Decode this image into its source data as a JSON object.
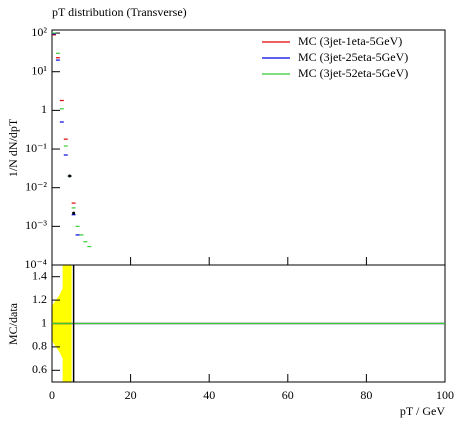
{
  "chart_data": {
    "type": "histogram-ratio",
    "title": "pT distribution (Transverse)",
    "ylabel": "1/N dN/dpT",
    "xlabel": "pT / GeV",
    "ratio_ylabel": "MC/data",
    "log_y": true,
    "xlim": [
      0,
      100
    ],
    "xticks": [
      0,
      20,
      40,
      60,
      80,
      100
    ],
    "ylim": [
      0.0001,
      120
    ],
    "yticks": [
      {
        "value": 100,
        "label": "10²"
      },
      {
        "value": 10,
        "label": "10¹"
      },
      {
        "value": 1,
        "label": "1"
      },
      {
        "value": 0.1,
        "label": "10⁻¹"
      },
      {
        "value": 0.01,
        "label": "10⁻²"
      },
      {
        "value": 0.001,
        "label": "10⁻³"
      },
      {
        "value": 0.0001,
        "label": "10⁻⁴"
      }
    ],
    "x": [
      0.5,
      1.5,
      2.5,
      3.5,
      4.5,
      5.5,
      6.5,
      7.5,
      8.5,
      9.5
    ],
    "series": [
      {
        "name": "MC (3jet-1eta-5GeV)",
        "color": "#e00000",
        "values": [
          90,
          23,
          1.8,
          0.18,
          0.02,
          0.004,
          null,
          null,
          null,
          null
        ]
      },
      {
        "name": "MC (3jet-25eta-5GeV)",
        "color": "#0000e0",
        "values": [
          95,
          20,
          0.5,
          0.07,
          0.02,
          0.002,
          0.0006,
          null,
          null,
          null
        ]
      },
      {
        "name": "MC (3jet-52eta-5GeV)",
        "color": "#33cc33",
        "values": [
          100,
          30,
          1.1,
          0.12,
          0.02,
          0.003,
          0.001,
          0.0006,
          0.0004,
          0.0003
        ]
      }
    ],
    "reference": {
      "color": "#000000",
      "x": [
        4.5,
        5.5
      ],
      "values": [
        0.02,
        0.0022
      ]
    },
    "ratio_ylim": [
      0.5,
      1.5
    ],
    "ratio_yticks": [
      0.6,
      0.8,
      1,
      1.2,
      1.4
    ],
    "ratio_band": {
      "color": "#ffff00",
      "x": [
        0,
        1,
        2,
        2.7,
        2.7,
        5
      ],
      "lower": [
        0.85,
        0.8,
        0.75,
        0.7,
        0.5,
        0.5
      ],
      "upper": [
        1.15,
        1.2,
        1.25,
        1.3,
        1.5,
        1.5
      ]
    },
    "ratio_line": 1,
    "ratio_marker_x": 5.5
  }
}
